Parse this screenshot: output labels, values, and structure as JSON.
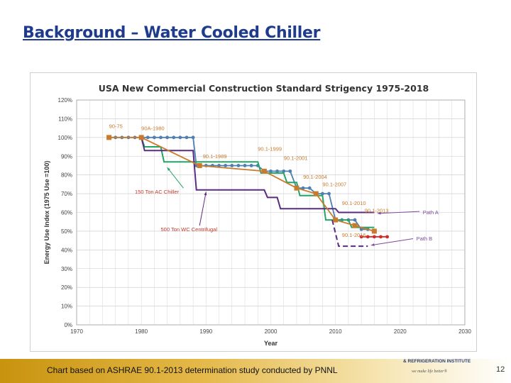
{
  "slide": {
    "title": "Background – Water Cooled Chiller",
    "footer_caption": "Chart based on ASHRAE 90.1-2013 determination study conducted by PNNL",
    "org_line1": "& REFRIGERATION INSTITUTE",
    "org_line2": "we make life better®",
    "page_number": "12"
  },
  "chart_data": {
    "type": "line",
    "title": "USA New Commercial Construction  Standard Strigency 1975-2018",
    "xlabel": "Year",
    "ylabel": "Energy Use Index (1975 Use =100)",
    "xlim": [
      1970,
      2030
    ],
    "ylim": [
      0,
      120
    ],
    "x_ticks": [
      "1970",
      "1980",
      "1990",
      "2000",
      "2010",
      "2020",
      "2030"
    ],
    "y_ticks": [
      "0%",
      "10%",
      "20%",
      "30%",
      "40%",
      "50%",
      "60%",
      "70%",
      "80%",
      "90%",
      "100%",
      "110%",
      "120%"
    ],
    "grid": true,
    "colors": {
      "blue": "#4f7fb0",
      "green": "#22a565",
      "purple": "#5b2a82",
      "orange": "#c87b2c",
      "red": "#d02a2a",
      "annotation": "#c0392b",
      "arrow": "#7d4a9e"
    },
    "series": [
      {
        "color_key": "blue",
        "marker": "circle",
        "points": [
          [
            1975,
            100
          ],
          [
            1976,
            100
          ],
          [
            1977,
            100
          ],
          [
            1978,
            100
          ],
          [
            1979,
            100
          ],
          [
            1980,
            100
          ],
          [
            1981,
            100
          ],
          [
            1982,
            100
          ],
          [
            1983,
            100
          ],
          [
            1984,
            100
          ],
          [
            1985,
            100
          ],
          [
            1986,
            100
          ],
          [
            1987,
            100
          ],
          [
            1988,
            100
          ],
          [
            1988.5,
            85
          ],
          [
            1990,
            85
          ],
          [
            1991,
            85
          ],
          [
            1992,
            85
          ],
          [
            1993,
            85
          ],
          [
            1994,
            85
          ],
          [
            1995,
            85
          ],
          [
            1996,
            85
          ],
          [
            1997,
            85
          ],
          [
            1998,
            85
          ],
          [
            1999,
            82
          ],
          [
            2000,
            82
          ],
          [
            2001,
            82
          ],
          [
            2002,
            82
          ],
          [
            2003,
            82
          ],
          [
            2004,
            73
          ],
          [
            2005,
            73
          ],
          [
            2006,
            73
          ],
          [
            2007,
            70
          ],
          [
            2008,
            70
          ],
          [
            2009,
            70
          ],
          [
            2010,
            56
          ],
          [
            2011,
            56
          ],
          [
            2012,
            56
          ],
          [
            2013,
            56
          ],
          [
            2014,
            51
          ],
          [
            2015,
            51
          ]
        ]
      },
      {
        "color_key": "green",
        "marker": "none",
        "points": [
          [
            1980,
            100
          ],
          [
            1980.5,
            95
          ],
          [
            1983,
            95
          ],
          [
            1983.5,
            87
          ],
          [
            1998,
            87
          ],
          [
            1998.5,
            81
          ],
          [
            2002,
            81
          ],
          [
            2002.5,
            76
          ],
          [
            2004,
            76
          ],
          [
            2004.5,
            69
          ],
          [
            2008,
            69
          ],
          [
            2008.5,
            56
          ],
          [
            2012,
            56
          ],
          [
            2012.5,
            52
          ],
          [
            2016,
            52
          ]
        ]
      },
      {
        "color_key": "purple",
        "marker": "none",
        "points": [
          [
            1980,
            100
          ],
          [
            1980.5,
            93
          ],
          [
            1988,
            93
          ],
          [
            1988.5,
            72
          ],
          [
            1999,
            72
          ],
          [
            1999.5,
            68
          ],
          [
            2001,
            68
          ],
          [
            2001.5,
            62
          ],
          [
            2010,
            62
          ],
          [
            2010.5,
            60
          ],
          [
            2016,
            60
          ]
        ]
      },
      {
        "color_key": "purple",
        "marker": "none",
        "dashed": true,
        "points": [
          [
            2009.5,
            56
          ],
          [
            2010.5,
            42
          ],
          [
            2015,
            42
          ]
        ]
      },
      {
        "color_key": "orange",
        "marker": "square",
        "points": [
          [
            1975,
            100
          ],
          [
            1980,
            100
          ],
          [
            1989,
            85
          ],
          [
            1999,
            82
          ],
          [
            2004,
            73
          ],
          [
            2007,
            70
          ],
          [
            2010,
            56
          ],
          [
            2013,
            53
          ],
          [
            2016,
            50
          ]
        ]
      },
      {
        "color_key": "red",
        "marker": "circle",
        "points": [
          [
            2014,
            47
          ],
          [
            2015,
            47
          ],
          [
            2016,
            47
          ],
          [
            2017,
            47
          ],
          [
            2018,
            47
          ]
        ]
      }
    ],
    "annotations": [
      {
        "text": "90-75",
        "x": 1975,
        "y": 105,
        "color_key": "orange"
      },
      {
        "text": "90A-1980",
        "x": 1980,
        "y": 104,
        "color_key": "orange"
      },
      {
        "text": "90.1-1989",
        "x": 1989.5,
        "y": 89,
        "color_key": "orange"
      },
      {
        "text": "90.1-1999",
        "x": 1998,
        "y": 93,
        "color_key": "orange"
      },
      {
        "text": "90.1-2001",
        "x": 2002,
        "y": 88,
        "color_key": "orange"
      },
      {
        "text": "90.1-2004",
        "x": 2005,
        "y": 78,
        "color_key": "orange"
      },
      {
        "text": "90.1-2007",
        "x": 2008,
        "y": 74,
        "color_key": "orange"
      },
      {
        "text": "90.1-2010",
        "x": 2011,
        "y": 64,
        "color_key": "orange"
      },
      {
        "text": "90.1-2013",
        "x": 2014.5,
        "y": 60,
        "color_key": "orange"
      },
      {
        "text": "90.1-2016",
        "x": 2011,
        "y": 47,
        "color_key": "orange"
      },
      {
        "text": "150 Ton AC Chiller",
        "x": 1979,
        "y": 70,
        "color_key": "annotation"
      },
      {
        "text": "500 Ton WC Centrifugal",
        "x": 1983,
        "y": 50,
        "color_key": "annotation"
      },
      {
        "text": "Path A",
        "x": 2023.5,
        "y": 59,
        "color_key": "arrow"
      },
      {
        "text": "Path B",
        "x": 2022.5,
        "y": 45,
        "color_key": "arrow"
      }
    ]
  }
}
